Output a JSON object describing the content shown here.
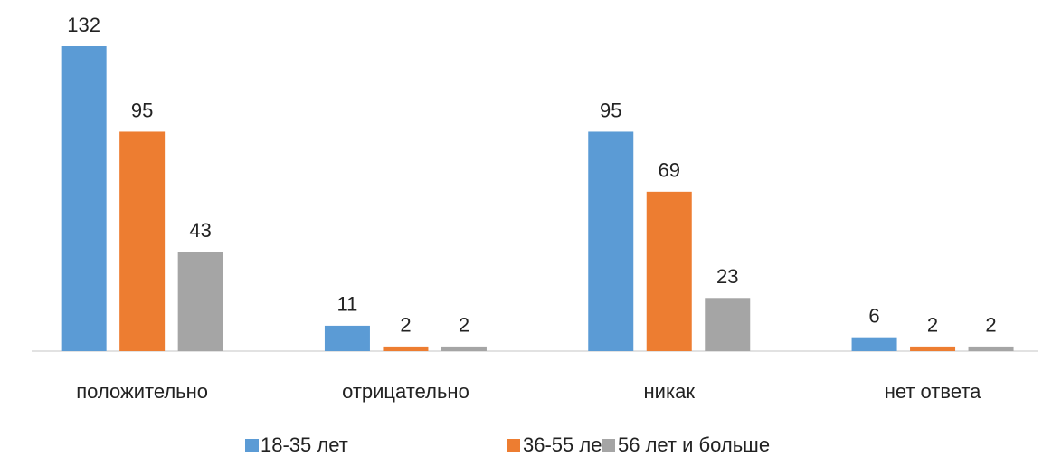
{
  "chart_data": {
    "type": "bar",
    "categories": [
      "положительно",
      "отрицательно",
      "никак",
      "нет ответа"
    ],
    "series": [
      {
        "name": "18-35 лет",
        "color": "#5b9bd5",
        "values": [
          132,
          11,
          95,
          6
        ]
      },
      {
        "name": "36-55 лет",
        "color": "#ed7d31",
        "values": [
          95,
          2,
          69,
          2
        ]
      },
      {
        "name": "56 лет и больше",
        "color": "#a5a5a5",
        "values": [
          43,
          2,
          23,
          2
        ]
      }
    ],
    "legend": "bottom"
  }
}
